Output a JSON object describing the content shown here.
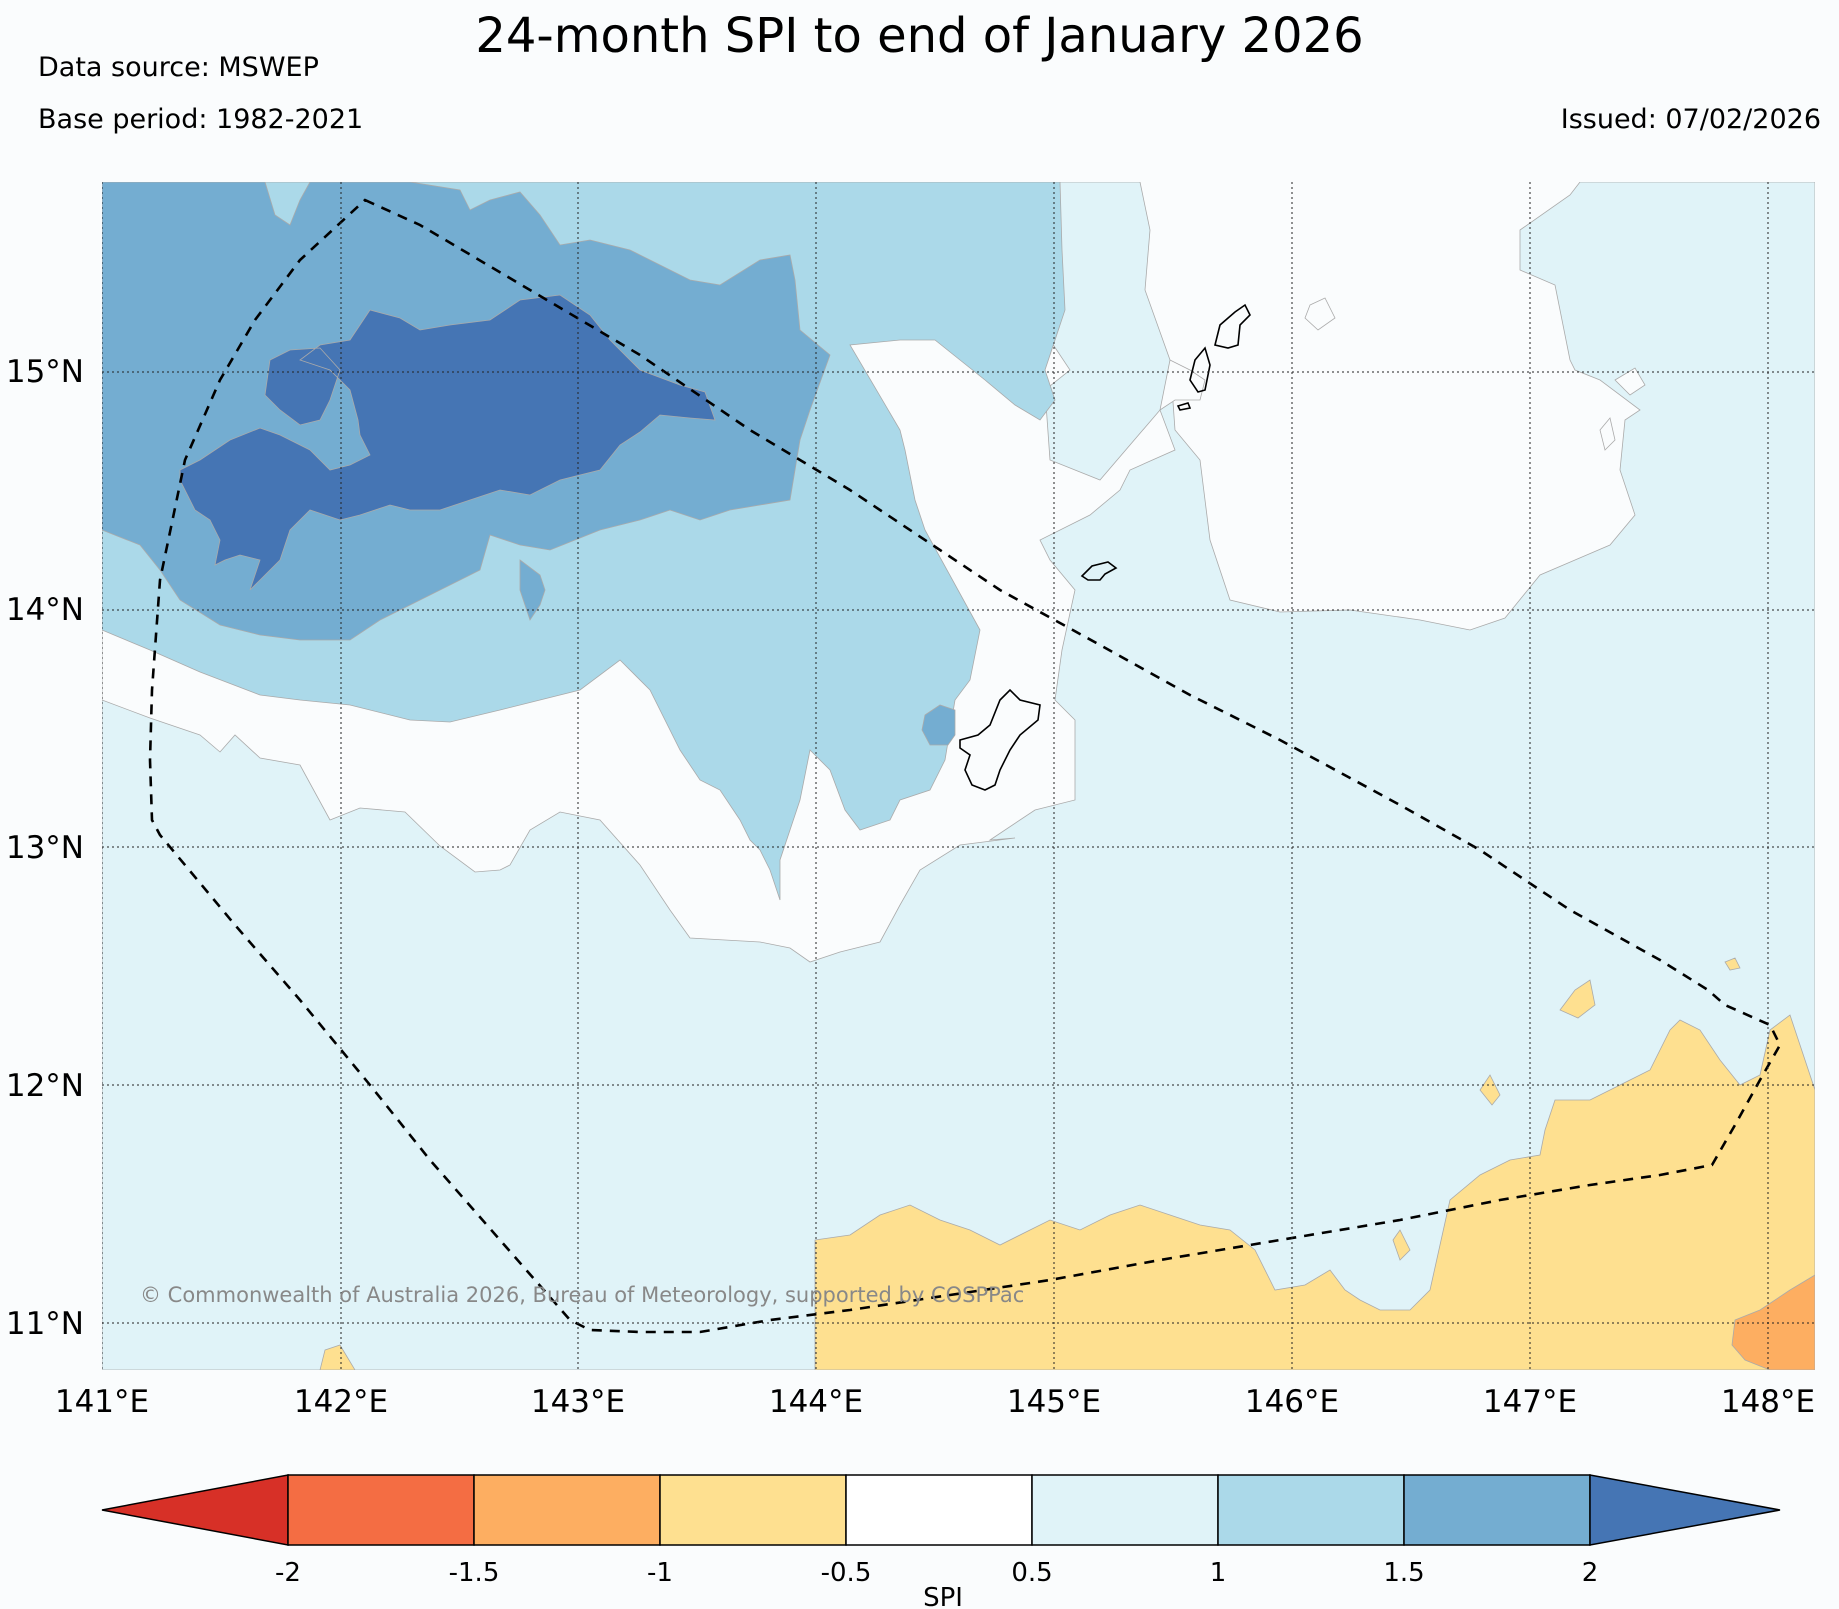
{
  "title": "24-month SPI to end of January 2026",
  "data_source": "Data source: MSWEP",
  "base_period": "Base period: 1982-2021",
  "issued": "Issued: 07/02/2026",
  "copyright": "© Commonwealth of Australia 2026, Bureau of Meteorology, supported by COSPPac",
  "map": {
    "lon_labels": [
      "141°E",
      "142°E",
      "143°E",
      "144°E",
      "145°E",
      "146°E",
      "147°E",
      "148°E"
    ],
    "lat_labels": [
      "15°N",
      "14°N",
      "13°N",
      "12°N",
      "11°N"
    ]
  },
  "colorbar": {
    "label": "SPI",
    "ticks": [
      "-2",
      "-1.5",
      "-1",
      "-0.5",
      "0.5",
      "1",
      "1.5",
      "2"
    ],
    "colors": {
      "below_min": "#d73027",
      "bins": [
        "#f46d43",
        "#fdae61",
        "#fee090",
        "#ffffff",
        "#e0f3f8",
        "#abd9e9",
        "#74add1"
      ],
      "above_max": "#4575b4"
    }
  }
}
